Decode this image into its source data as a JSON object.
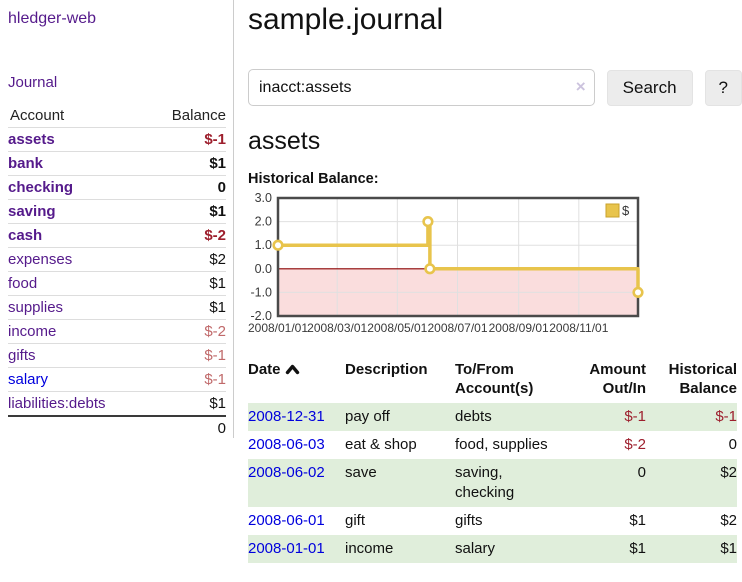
{
  "sidebar": {
    "app_title": "hledger-web",
    "journal_link": "Journal",
    "accounts_table": {
      "headers": {
        "account": "Account",
        "balance": "Balance"
      },
      "rows": [
        {
          "name": "assets",
          "balance": "$-1",
          "indent": 1,
          "bold": true,
          "balance_style": "neg-strong"
        },
        {
          "name": "bank",
          "balance": "$1",
          "indent": 2,
          "bold": true,
          "balance_style": ""
        },
        {
          "name": "checking",
          "balance": "0",
          "indent": 3,
          "bold": true,
          "balance_style": ""
        },
        {
          "name": "saving",
          "balance": "$1",
          "indent": 3,
          "bold": true,
          "balance_style": ""
        },
        {
          "name": "cash",
          "balance": "$-2",
          "indent": 2,
          "bold": true,
          "balance_style": "neg-strong"
        },
        {
          "name": "expenses",
          "balance": "$2",
          "indent": 1,
          "bold": false,
          "balance_style": ""
        },
        {
          "name": "food",
          "balance": "$1",
          "indent": 2,
          "bold": false,
          "balance_style": ""
        },
        {
          "name": "supplies",
          "balance": "$1",
          "indent": 2,
          "bold": false,
          "balance_style": ""
        },
        {
          "name": "income",
          "balance": "$-2",
          "indent": 1,
          "bold": false,
          "balance_style": "neg-muted"
        },
        {
          "name": "gifts",
          "balance": "$-1",
          "indent": 2,
          "bold": false,
          "balance_style": "neg-muted"
        },
        {
          "name": "salary",
          "balance": "$-1",
          "indent": 2,
          "bold": false,
          "balance_style": "neg-muted",
          "link_color": "blue"
        },
        {
          "name": "liabilities:debts",
          "balance": "$1",
          "indent": 1,
          "bold": false,
          "balance_style": ""
        }
      ],
      "total": "0"
    }
  },
  "main": {
    "title": "sample.journal",
    "search": {
      "value": "inacct:assets",
      "clear_icon": "×",
      "search_button": "Search",
      "help_button": "?"
    },
    "account_heading": "assets",
    "chart_label": "Historical Balance:"
  },
  "chart_data": {
    "type": "line",
    "step": true,
    "title": "Historical Balance:",
    "series": [
      {
        "name": "$",
        "color": "#e8c44c",
        "points": [
          [
            "2008/01/01",
            1.0
          ],
          [
            "2008/06/01",
            2.0
          ],
          [
            "2008/06/03",
            0.0
          ],
          [
            "2008/12/31",
            -1.0
          ]
        ]
      }
    ],
    "x_range": [
      "2008/01/01",
      "2008/12/31"
    ],
    "x_ticks": [
      "2008/01/01",
      "2008/03/01",
      "2008/05/01",
      "2008/07/01",
      "2008/09/01",
      "2008/11/01"
    ],
    "y_ticks": [
      3.0,
      2.0,
      1.0,
      0.0,
      -1.0,
      -2.0
    ],
    "ylim": [
      -2.0,
      3.0
    ],
    "grid": true,
    "legend_position": "top-right",
    "legend_label": "$"
  },
  "register_table": {
    "headers": {
      "date": "Date",
      "description": "Description",
      "accounts": "To/From Account(s)",
      "amount": "Amount Out/In",
      "historical": "Historical Balance"
    },
    "rows": [
      {
        "date": "2008-12-31",
        "description": "pay off",
        "accounts": "debts",
        "amount": "$-1",
        "amount_neg": true,
        "historical": "$-1",
        "historical_neg": true
      },
      {
        "date": "2008-06-03",
        "description": "eat & shop",
        "accounts": "food, supplies",
        "amount": "$-2",
        "amount_neg": true,
        "historical": "0",
        "historical_neg": false
      },
      {
        "date": "2008-06-02",
        "description": "save",
        "accounts": "saving, checking",
        "amount": "0",
        "amount_neg": false,
        "historical": "$2",
        "historical_neg": false
      },
      {
        "date": "2008-06-01",
        "description": "gift",
        "accounts": "gifts",
        "amount": "$1",
        "amount_neg": false,
        "historical": "$2",
        "historical_neg": false
      },
      {
        "date": "2008-01-01",
        "description": "income",
        "accounts": "salary",
        "amount": "$1",
        "amount_neg": false,
        "historical": "$1",
        "historical_neg": false
      }
    ]
  },
  "colors": {
    "link_purple": "#551a8b",
    "link_blue": "#0000dd",
    "negative_strong": "#9d1f2d",
    "negative_muted": "#c0696a",
    "row_stripe_green": "#e0eedb",
    "series_gold": "#e8c44c",
    "legend_swatch_border": "#c9a22b",
    "negative_region_pink": "#fadddd",
    "zero_line_red": "#8c0000",
    "plot_border_gray": "#4a4a4a"
  }
}
